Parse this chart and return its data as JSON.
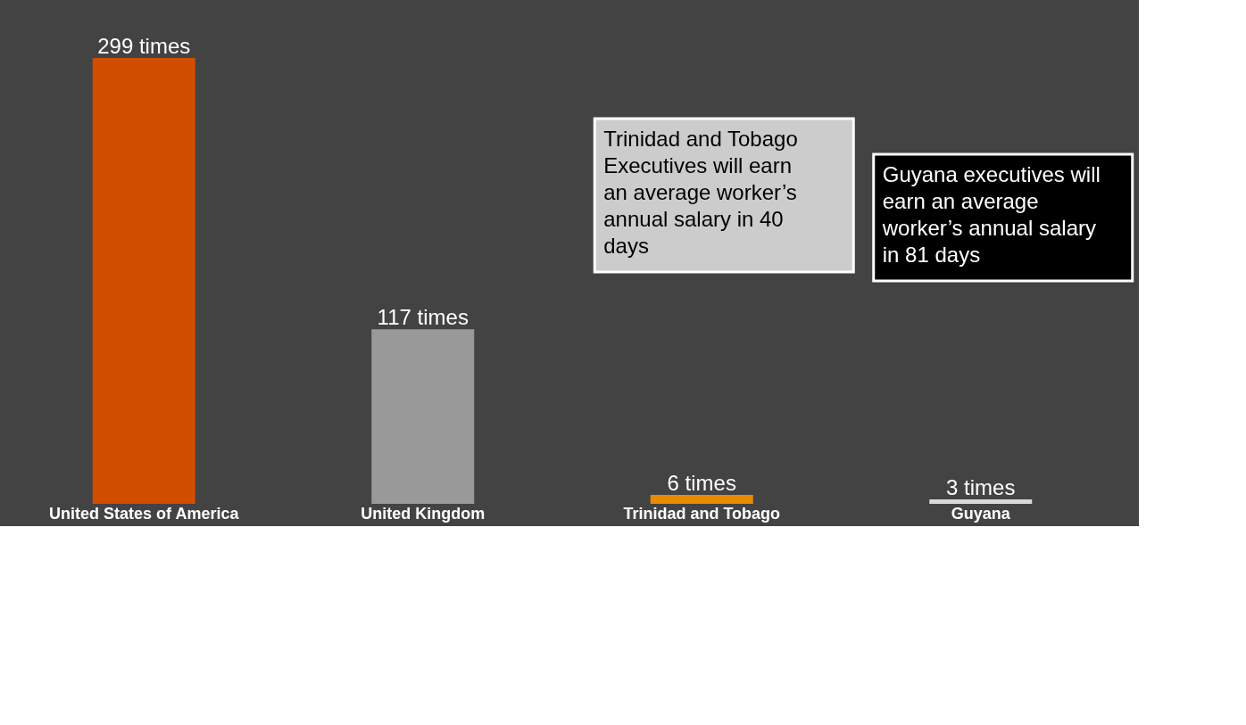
{
  "chart_data": {
    "type": "bar",
    "categories": [
      "United States of America",
      "United Kingdom",
      "Trinidad and Tobago",
      "Guyana"
    ],
    "values": [
      299,
      117,
      6,
      3
    ],
    "colors": [
      "#d14d00",
      "#999999",
      "#e98b00",
      "#d9d9d9"
    ],
    "value_labels": [
      "299 times",
      "117 times",
      "6 times",
      "3 times"
    ],
    "annotations": [
      "Trinidad and Tobago Executives will earn an average worker’s annual salary in 40 days",
      "Guyana executives will earn an average worker’s annual salary in 81 days"
    ],
    "grid": false
  }
}
